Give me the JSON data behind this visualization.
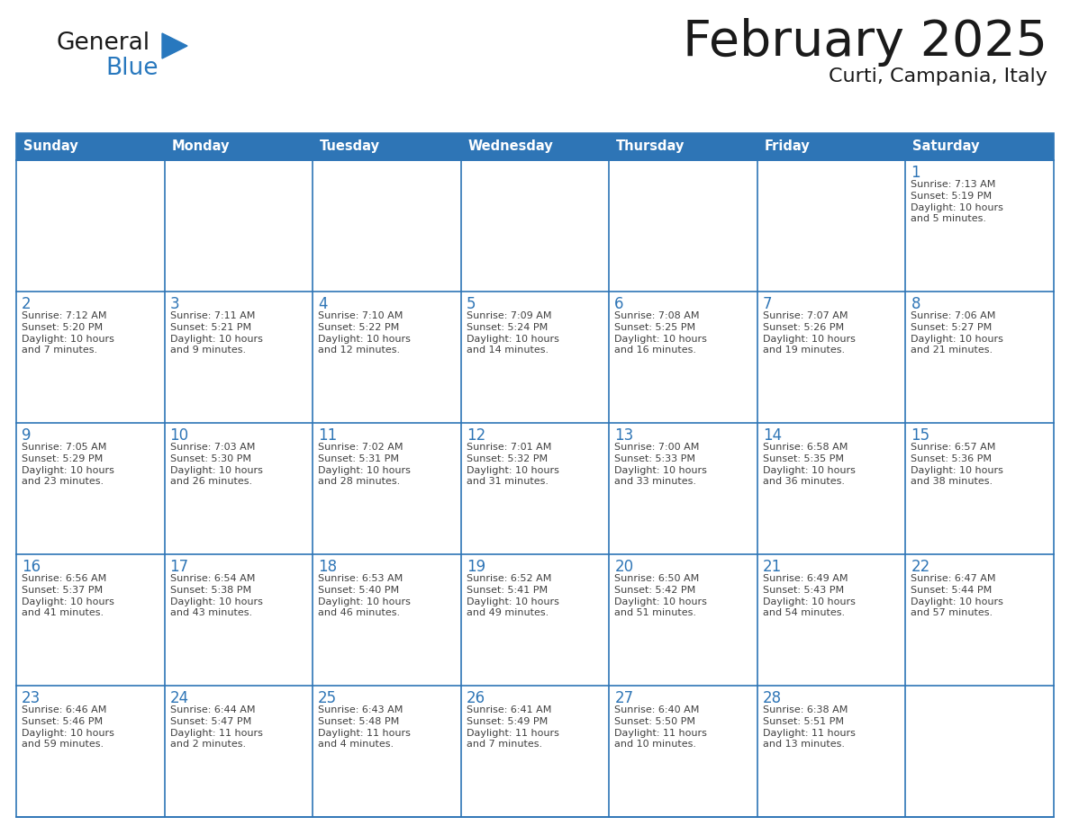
{
  "title": "February 2025",
  "subtitle": "Curti, Campania, Italy",
  "header_bg_color": "#2E75B6",
  "header_text_color": "#FFFFFF",
  "cell_bg_color": "#FFFFFF",
  "grid_line_color": "#2E75B6",
  "day_number_color": "#2E75B6",
  "cell_text_color": "#404040",
  "days_of_week": [
    "Sunday",
    "Monday",
    "Tuesday",
    "Wednesday",
    "Thursday",
    "Friday",
    "Saturday"
  ],
  "calendar_data": [
    [
      null,
      null,
      null,
      null,
      null,
      null,
      {
        "day": "1",
        "sunrise": "7:13 AM",
        "sunset": "5:19 PM",
        "daylight1": "Daylight: 10 hours",
        "daylight2": "and 5 minutes."
      }
    ],
    [
      {
        "day": "2",
        "sunrise": "7:12 AM",
        "sunset": "5:20 PM",
        "daylight1": "Daylight: 10 hours",
        "daylight2": "and 7 minutes."
      },
      {
        "day": "3",
        "sunrise": "7:11 AM",
        "sunset": "5:21 PM",
        "daylight1": "Daylight: 10 hours",
        "daylight2": "and 9 minutes."
      },
      {
        "day": "4",
        "sunrise": "7:10 AM",
        "sunset": "5:22 PM",
        "daylight1": "Daylight: 10 hours",
        "daylight2": "and 12 minutes."
      },
      {
        "day": "5",
        "sunrise": "7:09 AM",
        "sunset": "5:24 PM",
        "daylight1": "Daylight: 10 hours",
        "daylight2": "and 14 minutes."
      },
      {
        "day": "6",
        "sunrise": "7:08 AM",
        "sunset": "5:25 PM",
        "daylight1": "Daylight: 10 hours",
        "daylight2": "and 16 minutes."
      },
      {
        "day": "7",
        "sunrise": "7:07 AM",
        "sunset": "5:26 PM",
        "daylight1": "Daylight: 10 hours",
        "daylight2": "and 19 minutes."
      },
      {
        "day": "8",
        "sunrise": "7:06 AM",
        "sunset": "5:27 PM",
        "daylight1": "Daylight: 10 hours",
        "daylight2": "and 21 minutes."
      }
    ],
    [
      {
        "day": "9",
        "sunrise": "7:05 AM",
        "sunset": "5:29 PM",
        "daylight1": "Daylight: 10 hours",
        "daylight2": "and 23 minutes."
      },
      {
        "day": "10",
        "sunrise": "7:03 AM",
        "sunset": "5:30 PM",
        "daylight1": "Daylight: 10 hours",
        "daylight2": "and 26 minutes."
      },
      {
        "day": "11",
        "sunrise": "7:02 AM",
        "sunset": "5:31 PM",
        "daylight1": "Daylight: 10 hours",
        "daylight2": "and 28 minutes."
      },
      {
        "day": "12",
        "sunrise": "7:01 AM",
        "sunset": "5:32 PM",
        "daylight1": "Daylight: 10 hours",
        "daylight2": "and 31 minutes."
      },
      {
        "day": "13",
        "sunrise": "7:00 AM",
        "sunset": "5:33 PM",
        "daylight1": "Daylight: 10 hours",
        "daylight2": "and 33 minutes."
      },
      {
        "day": "14",
        "sunrise": "6:58 AM",
        "sunset": "5:35 PM",
        "daylight1": "Daylight: 10 hours",
        "daylight2": "and 36 minutes."
      },
      {
        "day": "15",
        "sunrise": "6:57 AM",
        "sunset": "5:36 PM",
        "daylight1": "Daylight: 10 hours",
        "daylight2": "and 38 minutes."
      }
    ],
    [
      {
        "day": "16",
        "sunrise": "6:56 AM",
        "sunset": "5:37 PM",
        "daylight1": "Daylight: 10 hours",
        "daylight2": "and 41 minutes."
      },
      {
        "day": "17",
        "sunrise": "6:54 AM",
        "sunset": "5:38 PM",
        "daylight1": "Daylight: 10 hours",
        "daylight2": "and 43 minutes."
      },
      {
        "day": "18",
        "sunrise": "6:53 AM",
        "sunset": "5:40 PM",
        "daylight1": "Daylight: 10 hours",
        "daylight2": "and 46 minutes."
      },
      {
        "day": "19",
        "sunrise": "6:52 AM",
        "sunset": "5:41 PM",
        "daylight1": "Daylight: 10 hours",
        "daylight2": "and 49 minutes."
      },
      {
        "day": "20",
        "sunrise": "6:50 AM",
        "sunset": "5:42 PM",
        "daylight1": "Daylight: 10 hours",
        "daylight2": "and 51 minutes."
      },
      {
        "day": "21",
        "sunrise": "6:49 AM",
        "sunset": "5:43 PM",
        "daylight1": "Daylight: 10 hours",
        "daylight2": "and 54 minutes."
      },
      {
        "day": "22",
        "sunrise": "6:47 AM",
        "sunset": "5:44 PM",
        "daylight1": "Daylight: 10 hours",
        "daylight2": "and 57 minutes."
      }
    ],
    [
      {
        "day": "23",
        "sunrise": "6:46 AM",
        "sunset": "5:46 PM",
        "daylight1": "Daylight: 10 hours",
        "daylight2": "and 59 minutes."
      },
      {
        "day": "24",
        "sunrise": "6:44 AM",
        "sunset": "5:47 PM",
        "daylight1": "Daylight: 11 hours",
        "daylight2": "and 2 minutes."
      },
      {
        "day": "25",
        "sunrise": "6:43 AM",
        "sunset": "5:48 PM",
        "daylight1": "Daylight: 11 hours",
        "daylight2": "and 4 minutes."
      },
      {
        "day": "26",
        "sunrise": "6:41 AM",
        "sunset": "5:49 PM",
        "daylight1": "Daylight: 11 hours",
        "daylight2": "and 7 minutes."
      },
      {
        "day": "27",
        "sunrise": "6:40 AM",
        "sunset": "5:50 PM",
        "daylight1": "Daylight: 11 hours",
        "daylight2": "and 10 minutes."
      },
      {
        "day": "28",
        "sunrise": "6:38 AM",
        "sunset": "5:51 PM",
        "daylight1": "Daylight: 11 hours",
        "daylight2": "and 13 minutes."
      },
      null
    ]
  ],
  "logo_general_color": "#1a1a1a",
  "logo_blue_color": "#2878BE",
  "logo_triangle_color": "#2878BE",
  "title_color": "#1a1a1a",
  "subtitle_color": "#1a1a1a",
  "figwidth": 11.88,
  "figheight": 9.18,
  "dpi": 100
}
